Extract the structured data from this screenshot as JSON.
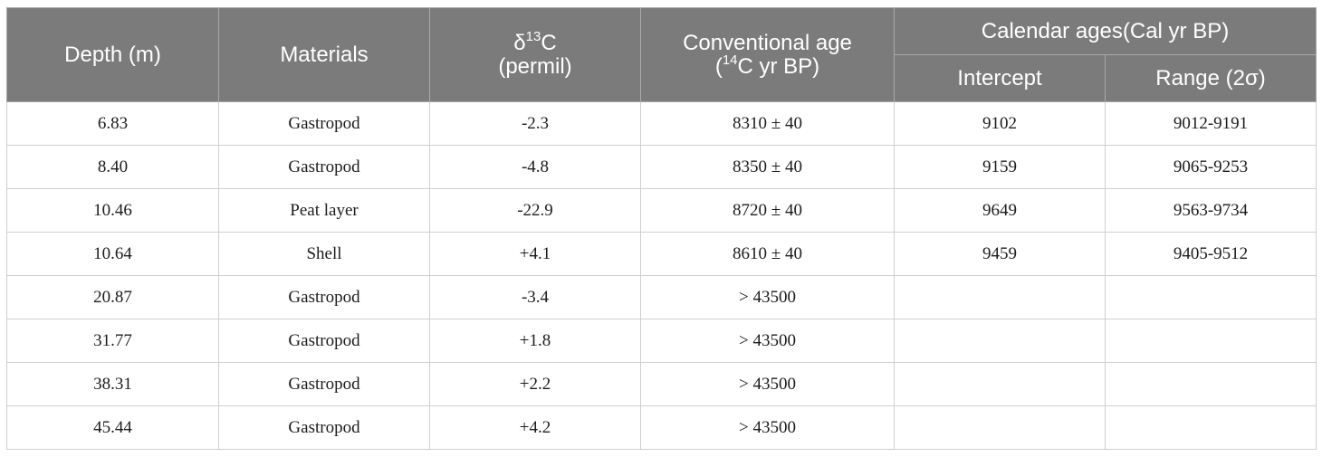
{
  "table": {
    "headers": {
      "depth": "Depth (m)",
      "materials": "Materials",
      "d13c_symbol": "δ",
      "d13c_sup": "13",
      "d13c_c": "C",
      "d13c_unit": "(permil)",
      "conv_age_line1": "Conventional age",
      "conv_age_open": "(",
      "conv_age_sup": "14",
      "conv_age_rest": "C yr BP)",
      "calendar_group": "Calendar ages(Cal yr BP)",
      "intercept": "Intercept",
      "range": "Range (2σ)"
    },
    "rows": [
      {
        "depth": "6.83",
        "material": "Gastropod",
        "d13c": "-2.3",
        "conv_age": "8310 ± 40",
        "intercept": "9102",
        "range": "9012-9191"
      },
      {
        "depth": "8.40",
        "material": "Gastropod",
        "d13c": "-4.8",
        "conv_age": "8350 ± 40",
        "intercept": "9159",
        "range": "9065-9253"
      },
      {
        "depth": "10.46",
        "material": "Peat layer",
        "d13c": "-22.9",
        "conv_age": "8720 ± 40",
        "intercept": "9649",
        "range": "9563-9734"
      },
      {
        "depth": "10.64",
        "material": "Shell",
        "d13c": "+4.1",
        "conv_age": "8610 ± 40",
        "intercept": "9459",
        "range": "9405-9512"
      },
      {
        "depth": "20.87",
        "material": "Gastropod",
        "d13c": "-3.4",
        "conv_age": "> 43500",
        "intercept": "",
        "range": ""
      },
      {
        "depth": "31.77",
        "material": "Gastropod",
        "d13c": "+1.8",
        "conv_age": "> 43500",
        "intercept": "",
        "range": ""
      },
      {
        "depth": "38.31",
        "material": "Gastropod",
        "d13c": "+2.2",
        "conv_age": "> 43500",
        "intercept": "",
        "range": ""
      },
      {
        "depth": "45.44",
        "material": "Gastropod",
        "d13c": "+4.2",
        "conv_age": "> 43500",
        "intercept": "",
        "range": ""
      }
    ]
  },
  "colors": {
    "header_bg": "#7b7b7b",
    "header_text": "#ffffff",
    "body_text": "#1c1c1c",
    "grid": "#cfcfcf"
  }
}
